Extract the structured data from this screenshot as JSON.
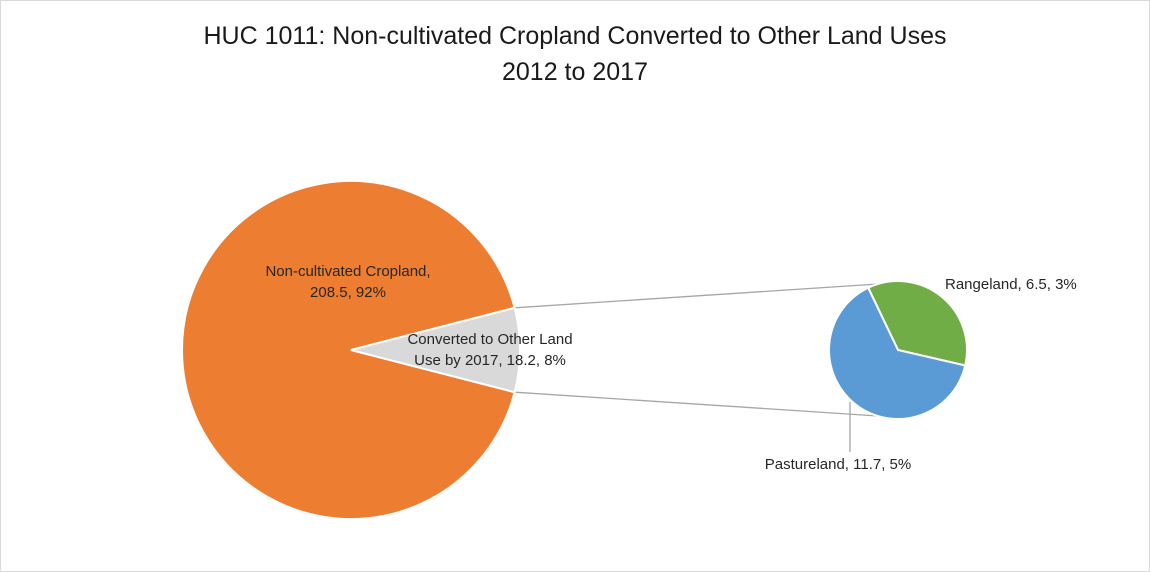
{
  "chart_data": {
    "type": "pie",
    "subtype": "pie-of-pie",
    "title": "HUC 1011: Non-cultivated Cropland Converted to Other Land Uses",
    "subtitle": "2012 to 2017",
    "main_pie": {
      "slices": [
        {
          "name": "Non-cultivated Cropland",
          "value": 208.5,
          "percent": "92%",
          "color": "#ED7D31",
          "label_lines": [
            "Non-cultivated Cropland,",
            "208.5, 92%"
          ]
        },
        {
          "name": "Converted to Other Land Use by 2017",
          "value": 18.2,
          "percent": "8%",
          "color": "#D9D9D9",
          "label_lines": [
            "Converted to Other Land",
            "Use by 2017, 18.2, 8%"
          ]
        }
      ]
    },
    "secondary_pie": {
      "slices": [
        {
          "name": "Rangeland",
          "value": 6.5,
          "percent": "3%",
          "color": "#70AD47",
          "label_lines": [
            "Rangeland, 6.5, 3%"
          ]
        },
        {
          "name": "Pastureland",
          "value": 11.7,
          "percent": "5%",
          "color": "#5B9BD5",
          "label_lines": [
            "Pastureland, 11.7, 5%"
          ]
        }
      ]
    },
    "legend": "none"
  },
  "colors": {
    "connector": "#a6a6a6",
    "slice_border": "#ffffff",
    "text": "#262626"
  }
}
